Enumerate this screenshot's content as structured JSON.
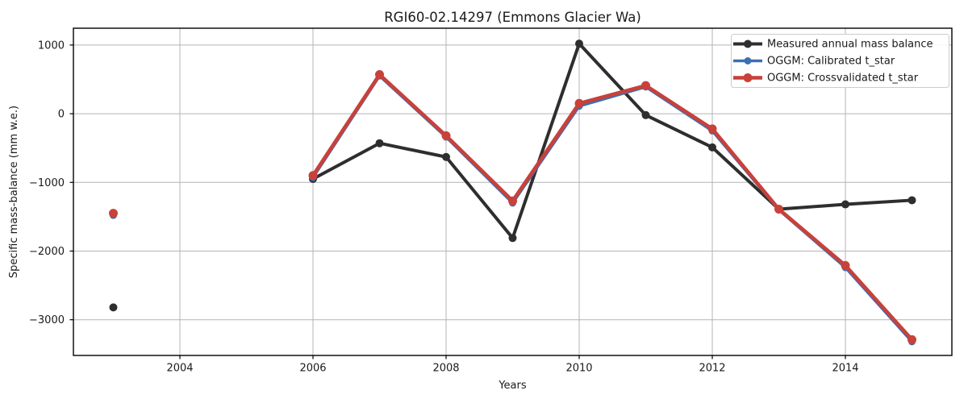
{
  "chart_data": {
    "type": "line",
    "title": "RGI60-02.14297 (Emmons Glacier Wa)",
    "xlabel": "Years",
    "ylabel": "Specific mass-balance (mm w.e.)",
    "xlim": [
      2002.4,
      2015.6
    ],
    "ylim": [
      -3520,
      1245
    ],
    "xticks": [
      2004,
      2006,
      2008,
      2010,
      2012,
      2014
    ],
    "yticks": [
      1000,
      0,
      -1000,
      -2000,
      -3000
    ],
    "grid": true,
    "grid_color": "#b4b4b4",
    "legend_position": "upper right",
    "series": [
      {
        "name": "Measured annual mass balance",
        "color": "#2e2e2e",
        "linewidth": 4,
        "marker_radius": 5,
        "segments": [
          {
            "x": [
              2003
            ],
            "y": [
              -2820
            ]
          },
          {
            "x": [
              2006,
              2007,
              2008,
              2009,
              2010,
              2011,
              2012,
              2013,
              2014,
              2015
            ],
            "y": [
              -950,
              -430,
              -630,
              -1810,
              1020,
              -20,
              -490,
              -1390,
              -1320,
              -1260
            ]
          }
        ]
      },
      {
        "name": "OGGM: Calibrated t_star",
        "color": "#3d6fb2",
        "linewidth": 3.5,
        "marker_radius": 4.5,
        "segments": [
          {
            "x": [
              2003
            ],
            "y": [
              -1480
            ]
          },
          {
            "x": [
              2006,
              2007,
              2008,
              2009,
              2010,
              2011,
              2012,
              2013,
              2014,
              2015
            ],
            "y": [
              -930,
              550,
              -340,
              -1300,
              110,
              390,
              -250,
              -1400,
              -2240,
              -3320
            ]
          }
        ]
      },
      {
        "name": "OGGM: Crossvalidated t_star",
        "color": "#c8413a",
        "linewidth": 4.5,
        "marker_radius": 5.5,
        "segments": [
          {
            "x": [
              2003
            ],
            "y": [
              -1450
            ]
          },
          {
            "x": [
              2006,
              2007,
              2008,
              2009,
              2010,
              2011,
              2012,
              2013,
              2014,
              2015
            ],
            "y": [
              -900,
              570,
              -320,
              -1270,
              150,
              410,
              -220,
              -1390,
              -2210,
              -3290
            ]
          }
        ]
      }
    ]
  }
}
